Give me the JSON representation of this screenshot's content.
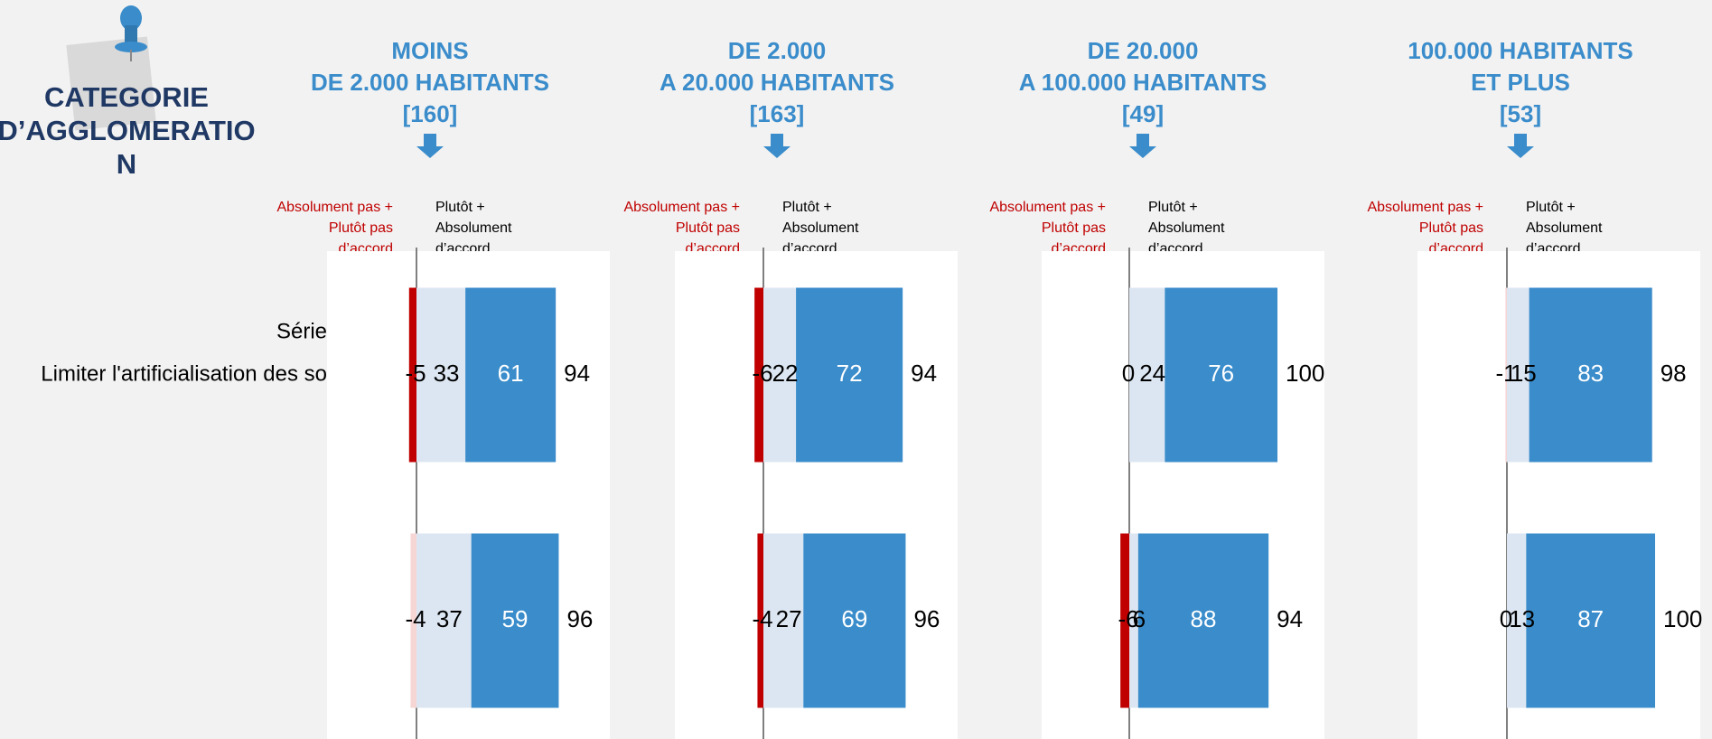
{
  "title": [
    "CATEGORIE",
    "D’AGGLOMERATIO",
    "N"
  ],
  "legend": {
    "negative": [
      "Absolument pas +",
      "Plutôt pas",
      "d’accord"
    ],
    "positive": [
      "Plutôt +",
      "Absolument",
      "d’accord"
    ]
  },
  "row_labels": [
    "Série",
    "Limiter l'artificialisation des so"
  ],
  "colors": {
    "negative_dark": "#c00000",
    "negative_light": "#f6d5d5",
    "plutot": "#dce6f2",
    "absolument": "#3a8ccb",
    "header": "#3a8ccb",
    "title": "#1f3864"
  },
  "panels": [
    {
      "header": [
        "MOINS",
        "DE 2.000 HABITANTS",
        "[160]"
      ],
      "neg": [
        -5,
        -4
      ],
      "neg_color": [
        "#c00000",
        "#f6d5d5"
      ],
      "plutot": [
        33,
        37
      ],
      "absolument": [
        61,
        59
      ],
      "total": [
        94,
        96
      ]
    },
    {
      "header": [
        "DE 2.000",
        "A 20.000 HABITANTS",
        "[163]"
      ],
      "neg": [
        -6,
        -4
      ],
      "neg_color": [
        "#c00000",
        "#c00000"
      ],
      "plutot": [
        22,
        27
      ],
      "absolument": [
        72,
        69
      ],
      "total": [
        94,
        96
      ]
    },
    {
      "header": [
        "DE 20.000",
        "A 100.000 HABITANTS",
        "[49]"
      ],
      "neg": [
        0,
        -6
      ],
      "neg_color": [
        "#c00000",
        "#c00000"
      ],
      "plutot": [
        24,
        6
      ],
      "absolument": [
        76,
        88
      ],
      "total": [
        100,
        94
      ]
    },
    {
      "header": [
        "100.000 HABITANTS",
        "ET PLUS",
        "[53]"
      ],
      "neg": [
        -1,
        0
      ],
      "neg_color": [
        "#f6d5d5",
        "#f6d5d5"
      ],
      "plutot": [
        15,
        13
      ],
      "absolument": [
        83,
        87
      ],
      "total": [
        98,
        100
      ]
    }
  ]
}
